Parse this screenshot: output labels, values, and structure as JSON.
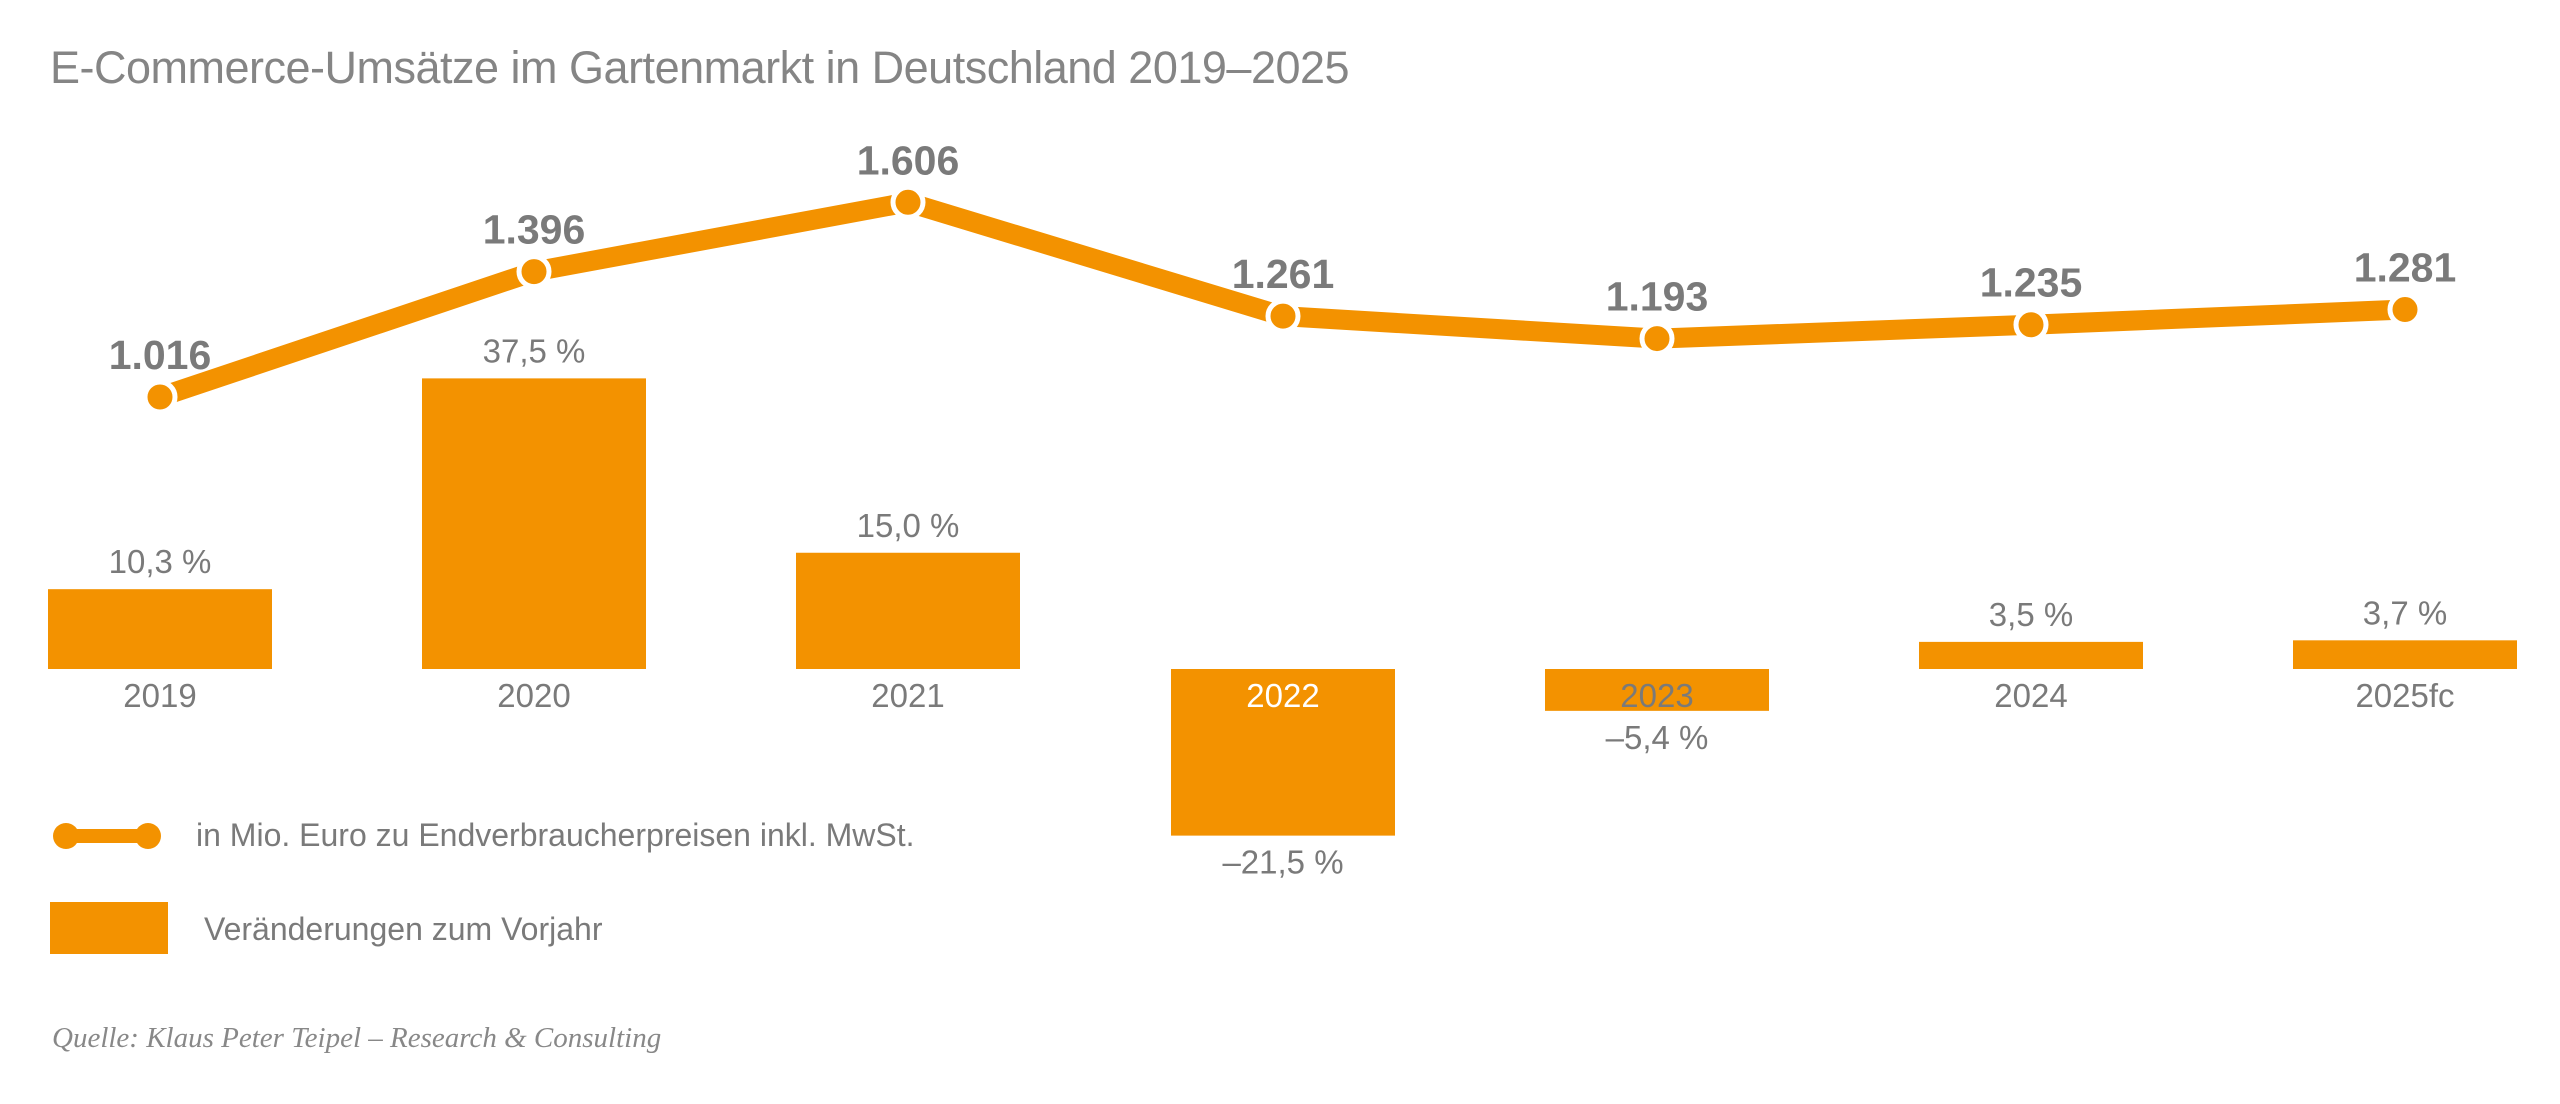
{
  "title": "E-Commerce-Umsätze im Gartenmarkt in Deutschland 2019–2025",
  "colors": {
    "accent": "#f39200",
    "text": "#7a7a7a",
    "background": "#ffffff"
  },
  "chart_data": {
    "type": "line+bar",
    "categories": [
      "2019",
      "2020",
      "2021",
      "2022",
      "2023",
      "2024",
      "2025fc"
    ],
    "series": [
      {
        "name": "in Mio. Euro zu Endverbraucherpreisen inkl. MwSt.",
        "type": "line",
        "values": [
          1016,
          1396,
          1606,
          1261,
          1193,
          1235,
          1281
        ],
        "labels": [
          "1.016",
          "1.396",
          "1.606",
          "1.261",
          "1.193",
          "1.235",
          "1.281"
        ]
      },
      {
        "name": "Veränderungen zum Vorjahr",
        "type": "bar",
        "values": [
          10.3,
          37.5,
          15.0,
          -21.5,
          -5.4,
          3.5,
          3.7
        ],
        "labels": [
          "10,3 %",
          "37,5 %",
          "15,0 %",
          "–21,5 %",
          "–5,4 %",
          "3,5 %",
          "3,7 %"
        ]
      }
    ],
    "legend": [
      "in Mio. Euro zu Endverbraucherpreisen inkl. MwSt.",
      "Veränderungen zum Vorjahr"
    ],
    "grid": false,
    "legend_position": "bottom-left"
  },
  "source": "Quelle: Klaus Peter Teipel – Research & Consulting"
}
